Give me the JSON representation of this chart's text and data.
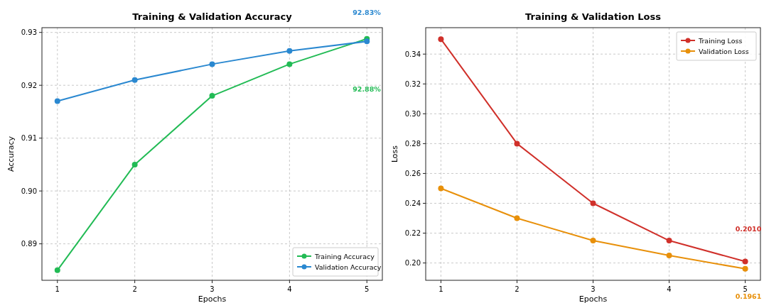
{
  "chart_data": [
    {
      "type": "line",
      "title": "Training & Validation Accuracy",
      "xlabel": "Epochs",
      "ylabel": "Accuracy",
      "x": [
        1,
        2,
        3,
        4,
        5
      ],
      "xlim": [
        0.8,
        5.2
      ],
      "xticks": [
        1,
        2,
        3,
        4,
        5
      ],
      "ylim": [
        0.8831,
        0.9309
      ],
      "yticks": [
        0.89,
        {
          "value": 0.9,
          "label": "0.90"
        },
        0.91,
        0.92,
        0.93
      ],
      "grid": true,
      "legend": "bottom right",
      "marker": "circle",
      "line_style": "solid",
      "series": [
        {
          "name": "Training Accuracy",
          "color": "#22bb55",
          "values": [
            0.885,
            0.905,
            0.918,
            0.924,
            0.9288
          ]
        },
        {
          "name": "Validation Accuracy",
          "color": "#2a88d0",
          "values": [
            0.917,
            0.921,
            0.924,
            0.9265,
            0.9283
          ]
        }
      ],
      "annotations": [
        "92.88%",
        "92.83%"
      ]
    },
    {
      "type": "line",
      "title": "Training & Validation Loss",
      "xlabel": "Epochs",
      "ylabel": "Loss",
      "x": [
        1,
        2,
        3,
        4,
        5
      ],
      "xlim": [
        0.8,
        5.2
      ],
      "xticks": [
        1,
        2,
        3,
        4,
        5
      ],
      "ylim": [
        0.1884,
        0.3577
      ],
      "yticks": [
        {
          "value": 0.2,
          "label": "0.20"
        },
        0.22,
        0.24,
        0.26,
        0.28,
        {
          "value": 0.3,
          "label": "0.30"
        },
        0.32,
        0.34
      ],
      "grid": true,
      "legend": "top right",
      "marker": "circle",
      "line_style": "solid",
      "series": [
        {
          "name": "Training Loss",
          "color": "#d0302a",
          "values": [
            0.35,
            0.28,
            0.24,
            0.215,
            0.201
          ]
        },
        {
          "name": "Validation Loss",
          "color": "#e8900a",
          "values": [
            0.25,
            0.23,
            0.215,
            0.205,
            0.1961
          ]
        }
      ],
      "annotations": [
        "0.2010",
        "0.1961"
      ]
    }
  ]
}
